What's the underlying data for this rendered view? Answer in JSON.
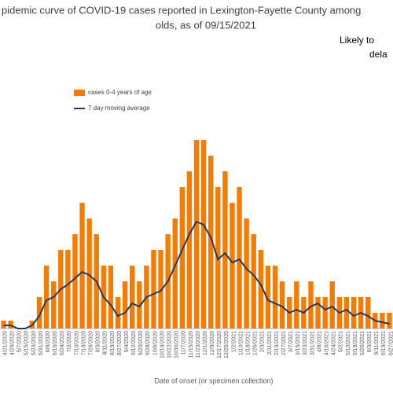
{
  "chart_data": {
    "type": "bar",
    "title": [
      "pidemic curve of COVID-19 cases reported in Lexington-Fayette County among",
      "olds, as of 09/15/2021"
    ],
    "annotation": [
      "Likely to",
      "dela"
    ],
    "x_label": "Date of onset (or specimen collection)",
    "categories": [
      "4/21/2020",
      "4/29/2020",
      "5/7/2020",
      "5/15/2020",
      "5/23/2020",
      "5/31/2020",
      "6/8/2020",
      "6/16/2020",
      "6/24/2020",
      "7/2/2020",
      "7/10/2020",
      "7/18/2020",
      "7/26/2020",
      "8/3/2020",
      "8/11/2020",
      "8/19/2020",
      "8/27/2020",
      "9/4/2020",
      "9/12/2020",
      "9/20/2020",
      "9/28/2020",
      "10/6/2020",
      "10/14/2020",
      "10/22/2020",
      "10/30/2020",
      "11/7/2020",
      "11/15/2020",
      "11/23/2020",
      "12/1/2020",
      "12/9/2020",
      "12/17/2020",
      "12/25/2020",
      "1/2/2021",
      "1/10/2021",
      "1/18/2021",
      "1/26/2021",
      "2/3/2021",
      "2/11/2021",
      "2/19/2021",
      "2/27/2021",
      "3/7/2021",
      "3/15/2021",
      "3/23/2021",
      "3/31/2021",
      "4/8/2021",
      "4/16/2021",
      "4/24/2021",
      "5/2/2021",
      "5/10/2021",
      "5/18/2021",
      "5/26/2021",
      "6/3/2021",
      "6/11/2021",
      "6/19/2021",
      "6/27/2021"
    ],
    "series": [
      {
        "name": "cases 0-4 years of age",
        "type": "bar",
        "color": "#f57c00",
        "values": [
          0.5,
          0.5,
          0,
          0,
          0.5,
          2,
          4,
          3,
          5,
          5,
          6,
          8,
          7,
          6,
          4,
          4,
          2,
          3,
          4,
          3,
          4,
          5,
          5,
          6,
          7,
          9,
          10,
          12,
          12,
          11,
          9,
          10,
          8,
          9,
          7,
          6,
          5,
          4,
          4,
          3,
          2,
          3,
          2,
          3,
          2,
          2,
          3,
          2,
          2,
          2,
          2,
          2,
          1,
          1,
          1
        ]
      },
      {
        "name": "7 day moving average",
        "type": "line",
        "color": "#1f3864",
        "values": [
          0.2,
          0.2,
          0,
          0,
          0.2,
          0.8,
          1.8,
          2,
          2.5,
          2.8,
          3.2,
          3.6,
          3.4,
          3,
          2,
          1.5,
          0.8,
          1,
          1.6,
          1.4,
          2,
          2.2,
          2.4,
          3,
          4,
          5,
          6,
          6.8,
          6.6,
          5.8,
          4.4,
          4.8,
          4.2,
          4.4,
          3.8,
          3.4,
          2.8,
          1.8,
          1.6,
          1.4,
          1,
          1.2,
          1,
          1.4,
          1.6,
          1.2,
          1.4,
          1,
          1.2,
          0.8,
          1,
          0.8,
          0.5,
          0.4,
          0.3
        ]
      }
    ],
    "ylim": [
      0,
      12
    ]
  }
}
